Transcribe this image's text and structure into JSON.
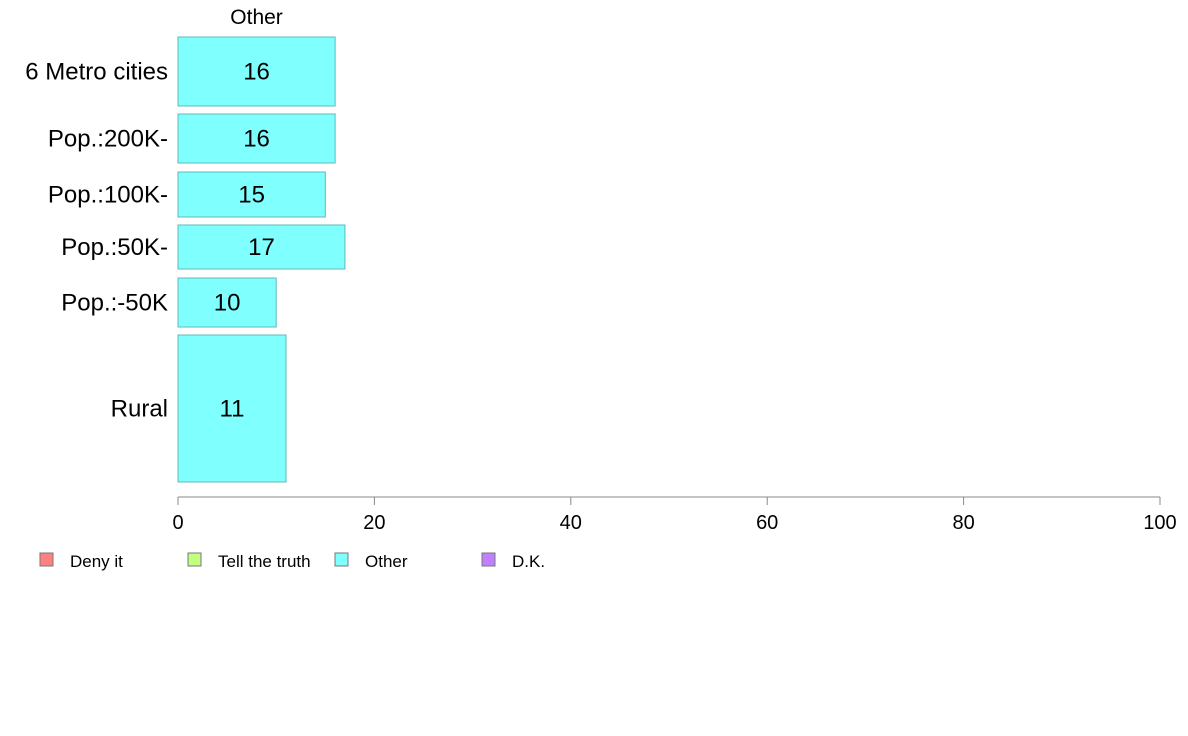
{
  "chart_data": {
    "type": "bar",
    "orientation": "horizontal",
    "panel_title": "Other",
    "categories": [
      "6 Metro cities",
      "Pop.:200K-",
      "Pop.:100K-",
      "Pop.:50K-",
      "Pop.:-50K",
      "Rural"
    ],
    "values": [
      16,
      16,
      15,
      17,
      10,
      11
    ],
    "value_labels": [
      "16",
      "16",
      "15",
      "17",
      "10",
      "11"
    ],
    "series_color": "#80ffff",
    "xlim": [
      0,
      100
    ],
    "x_ticks": [
      0,
      20,
      40,
      60,
      80,
      100
    ],
    "x_tick_labels": [
      "0",
      "20",
      "40",
      "60",
      "80",
      "100"
    ],
    "grid": false,
    "legend_position": "bottom-left",
    "legend": [
      {
        "label": "Deny it",
        "color": "#ff8080"
      },
      {
        "label": "Tell the truth",
        "color": "#c0ff80"
      },
      {
        "label": "Other",
        "color": "#80ffff"
      },
      {
        "label": "D.K.",
        "color": "#c080ff"
      }
    ]
  }
}
